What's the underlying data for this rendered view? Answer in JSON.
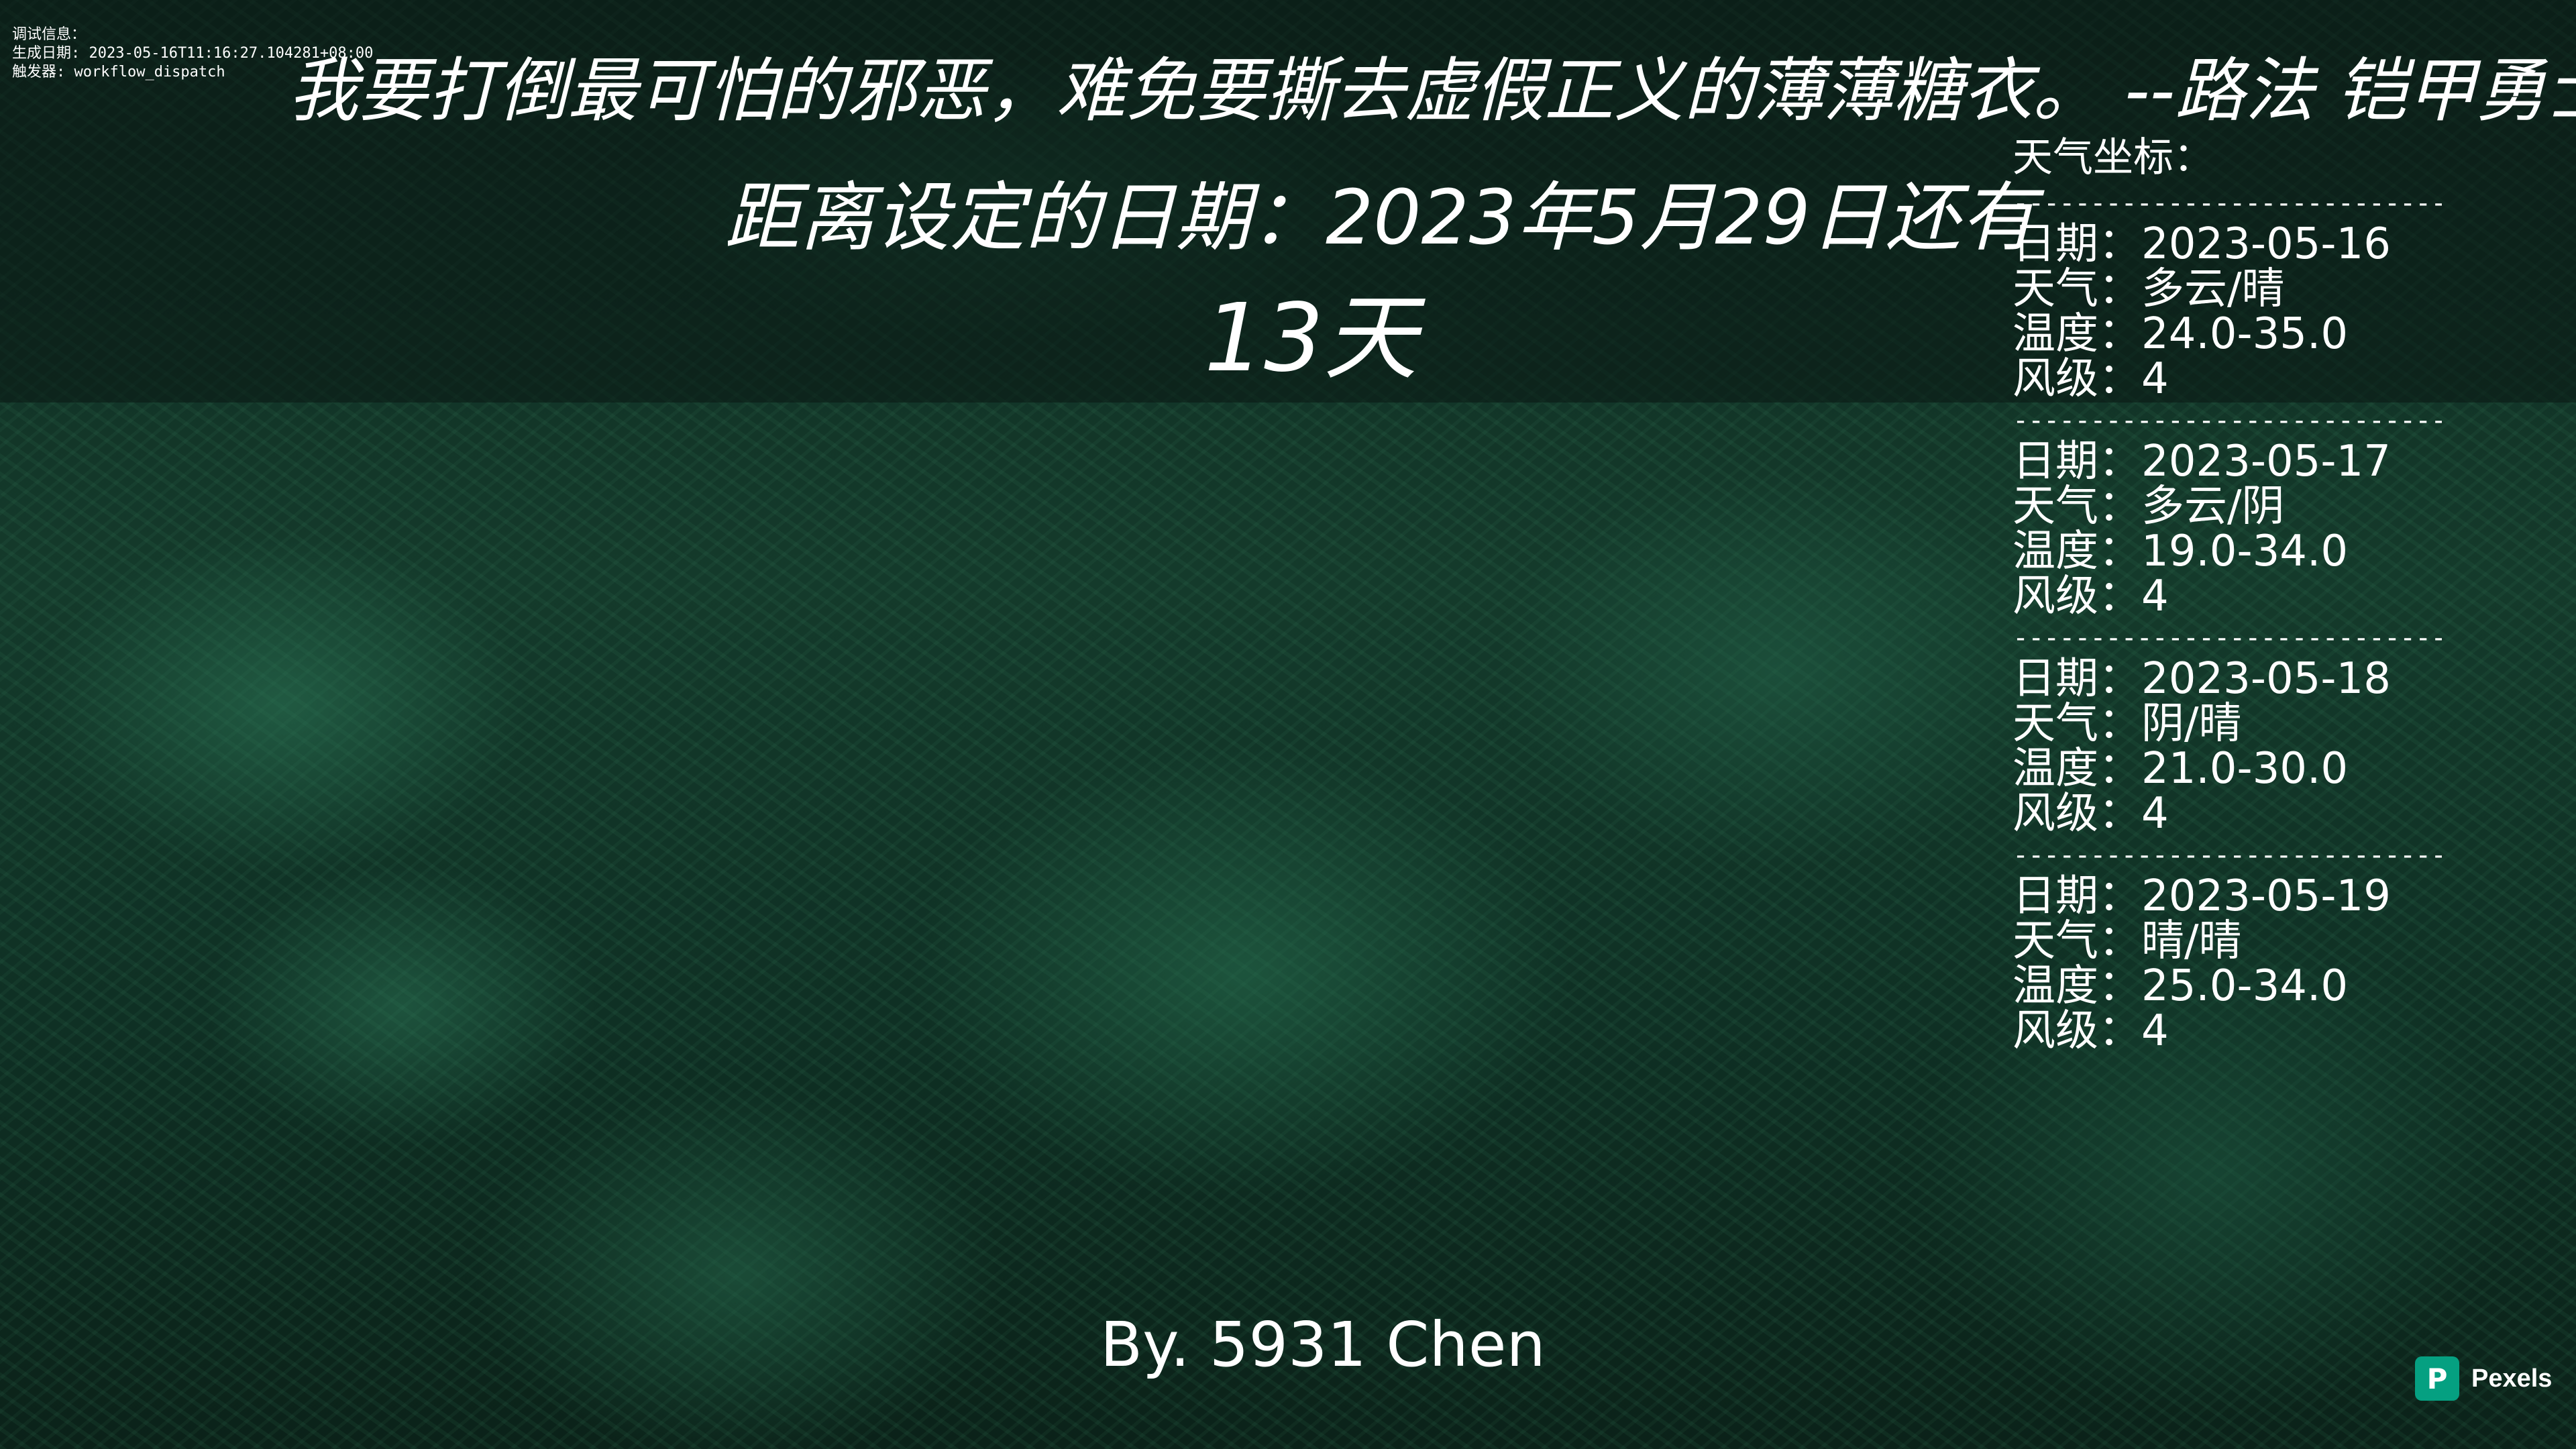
{
  "debug": {
    "title": "调试信息：",
    "generated": "生成日期: 2023-05-16T11:16:27.104281+08:00",
    "trigger": "触发器: workflow_dispatch"
  },
  "quote": "我要打倒最可怕的邪恶，难免要撕去虚假正义的薄薄糖衣。 --路法 铠甲勇士",
  "countdown": {
    "label": "距离设定的日期：2023年5月29日还有",
    "days": "13天"
  },
  "weather": {
    "title": "天气坐标：",
    "separator": "----------------------------",
    "days": [
      {
        "date": "日期：2023-05-16",
        "weather": "天气：多云/晴",
        "temp": "温度：24.0-35.0",
        "wind": "风级：4"
      },
      {
        "date": "日期：2023-05-17",
        "weather": "天气：多云/阴",
        "temp": "温度：19.0-34.0",
        "wind": "风级：4"
      },
      {
        "date": "日期：2023-05-18",
        "weather": "天气：阴/晴",
        "temp": "温度：21.0-30.0",
        "wind": "风级：4"
      },
      {
        "date": "日期：2023-05-19",
        "weather": "天气：晴/晴",
        "temp": "温度：25.0-34.0",
        "wind": "风级：4"
      }
    ]
  },
  "signature": "By. 5931 Chen",
  "credit": {
    "logo_letter": "P",
    "label": "Pexels",
    "logo_color": "#05a081"
  }
}
